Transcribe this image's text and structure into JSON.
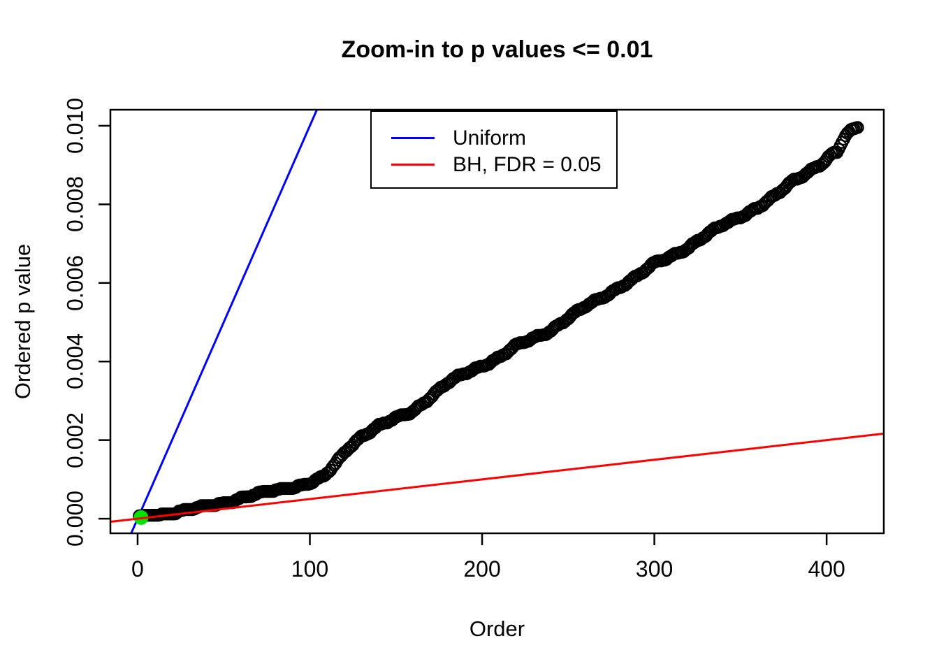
{
  "chart_data": {
    "type": "scatter",
    "title": "Zoom-in to p values <= 0.01",
    "xlabel": "Order",
    "ylabel": "Ordered p value",
    "xlim": [
      -15.8,
      433.2
    ],
    "ylim": [
      -0.000372,
      0.010408
    ],
    "grid": false,
    "background": "#FFFFFF",
    "axis_color": "#000000",
    "x_ticks": [
      0,
      100,
      200,
      300,
      400
    ],
    "x_tick_labels": [
      "0",
      "100",
      "200",
      "300",
      "400"
    ],
    "y_ticks": [
      0.0,
      0.002,
      0.004,
      0.006,
      0.008,
      0.01
    ],
    "y_tick_labels": [
      "0.000",
      "0.002",
      "0.004",
      "0.006",
      "0.008",
      "0.010"
    ],
    "series": [
      {
        "name": "ordered-p-values",
        "marker": "open-circle",
        "color": "#000000",
        "n_points": 418,
        "note": "ordered p values <= 0.01 plotted against rank; dense overlapping open circles; anchor points [order, p] below, intermediate ranks interpolated",
        "anchor_points": [
          [
            1,
            3e-05
          ],
          [
            5,
            5e-05
          ],
          [
            10,
            8e-05
          ],
          [
            15,
            0.00011
          ],
          [
            20,
            0.00014
          ],
          [
            30,
            0.00022
          ],
          [
            40,
            0.0003
          ],
          [
            50,
            0.0004
          ],
          [
            60,
            0.00052
          ],
          [
            70,
            0.00062
          ],
          [
            80,
            0.00072
          ],
          [
            90,
            0.0008
          ],
          [
            100,
            0.0009
          ],
          [
            108,
            0.00105
          ],
          [
            115,
            0.0014
          ],
          [
            122,
            0.0018
          ],
          [
            130,
            0.0021
          ],
          [
            140,
            0.00235
          ],
          [
            150,
            0.00255
          ],
          [
            160,
            0.00275
          ],
          [
            170,
            0.0031
          ],
          [
            180,
            0.00345
          ],
          [
            190,
            0.0037
          ],
          [
            200,
            0.0039
          ],
          [
            210,
            0.0041
          ],
          [
            220,
            0.0044
          ],
          [
            230,
            0.0046
          ],
          [
            240,
            0.0048
          ],
          [
            250,
            0.0051
          ],
          [
            260,
            0.0054
          ],
          [
            270,
            0.00565
          ],
          [
            280,
            0.0059
          ],
          [
            290,
            0.00615
          ],
          [
            300,
            0.0065
          ],
          [
            310,
            0.0067
          ],
          [
            320,
            0.0069
          ],
          [
            330,
            0.0072
          ],
          [
            340,
            0.0075
          ],
          [
            350,
            0.0077
          ],
          [
            360,
            0.0079
          ],
          [
            370,
            0.0082
          ],
          [
            380,
            0.0086
          ],
          [
            390,
            0.00885
          ],
          [
            398,
            0.00905
          ],
          [
            403,
            0.00925
          ],
          [
            406,
            0.0093
          ],
          [
            409,
            0.0096
          ],
          [
            412,
            0.0098
          ],
          [
            415,
            0.0099
          ],
          [
            418,
            0.00998
          ]
        ]
      },
      {
        "name": "significant-points",
        "marker": "filled-circle",
        "color": "#00E300",
        "points": [
          [
            2,
            3e-05
          ]
        ]
      }
    ],
    "lines": [
      {
        "name": "Uniform",
        "color": "#0000FF",
        "slope_p_per_order": 0.0001,
        "intercept": 0
      },
      {
        "name": "BH, FDR = 0.05",
        "color": "#FF0000",
        "slope_p_per_order": 5e-06,
        "intercept": 0
      }
    ],
    "legend": {
      "position": "top-center",
      "entries": [
        {
          "label": "Uniform",
          "color": "#0000FF"
        },
        {
          "label": "BH, FDR = 0.05",
          "color": "#FF0000"
        }
      ]
    }
  }
}
